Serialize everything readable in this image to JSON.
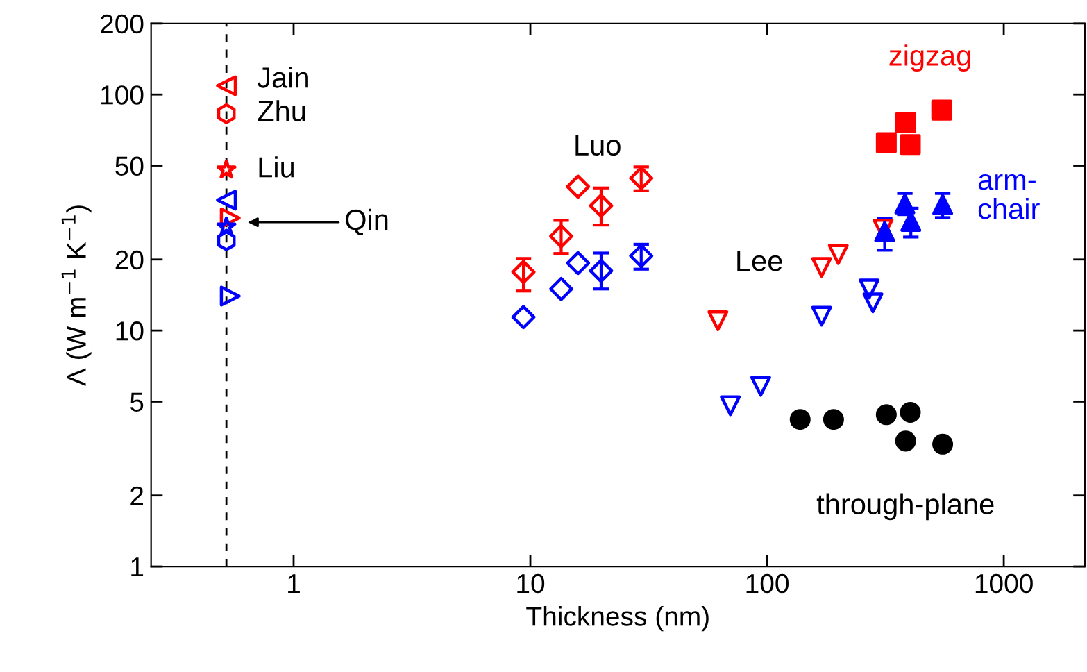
{
  "chart_data": {
    "type": "scatter",
    "xlabel": "Thickness (nm)",
    "ylabel": "Λ (W m$^{−1}$ K$^{−1}$)",
    "log": "xy",
    "xlim": [
      0.25,
      2200
    ],
    "ylim": [
      1,
      200
    ],
    "xticks": [
      1,
      10,
      100,
      1000
    ],
    "yticks": [
      1,
      2,
      5,
      10,
      20,
      50,
      100,
      200
    ],
    "grid": false,
    "legend": false,
    "ref_lines": [
      {
        "axis": "x",
        "value": 0.52,
        "label": null,
        "color": "#000000",
        "line_style": "dashed"
      }
    ],
    "annotations": [
      {
        "text": "Jain",
        "x": 0.52,
        "y": 109
      },
      {
        "text": "Zhu",
        "x": 0.52,
        "y": 83
      },
      {
        "text": "Liu",
        "x": 0.52,
        "y": 48
      },
      "Qin",
      {
        "text": "Luo",
        "x": 15.9,
        "y": 40.7
      },
      {
        "text": "Lee",
        "x": 170,
        "y": 18.5
      }
    ],
    "series": [
      {
        "color": "#ff0000",
        "marker": "triangle-left",
        "x": [
          0.52
        ],
        "values": [
          109
        ]
      },
      {
        "color": "#ff0000",
        "x": [
          0.52
        ],
        "values": [
          83
        ]
      },
      {
        "color": "#ff0000",
        "marker": "star",
        "x": [
          0.52
        ],
        "values": [
          48
        ]
      },
      {
        "color": "#0000ff",
        "marker": "triangle-left",
        "x": [
          0.52
        ],
        "values": [
          35.7
        ]
      },
      {
        "color": "#ff0000",
        "marker": "triangle-right",
        "x": [
          0.54
        ],
        "values": [
          30
        ]
      },
      {
        "color": "#0000ff",
        "marker": "star",
        "x": [
          0.52
        ],
        "values": [
          27.5
        ]
      },
      {
        "color": "#0000ff",
        "x": [
          0.52
        ],
        "values": [
          24
        ]
      },
      {
        "color": "#0000ff",
        "marker": "triangle-right",
        "x": [
          0.54
        ],
        "values": [
          14
        ]
      },
      {
        "color": "#ff0000",
        "marker": "diamond",
        "x": [
          9.35,
          13.5,
          15.9,
          19.9,
          29.4
        ],
        "values": [
          17.7,
          25.1,
          40.7,
          33.8,
          44.2
        ],
        "errors": [
          [
            14.7,
            20.2
          ],
          [
            21.2,
            29.3
          ],
          null,
          [
            28,
            40.2
          ],
          [
            39.1,
            49.4
          ]
        ]
      },
      {
        "color": "#0000ff",
        "marker": "diamond",
        "x": [
          9.35,
          13.5,
          15.9,
          19.9,
          29.4
        ],
        "values": [
          11.4,
          15,
          19.3,
          17.9,
          20.7
        ],
        "errors": [
          null,
          null,
          null,
          [
            15,
            21.3
          ],
          [
            18.2,
            23.2
          ]
        ]
      },
      {
        "color": "#ff0000",
        "marker": "triangle-down",
        "x": [
          62,
          170,
          200,
          309
        ],
        "values": [
          11,
          18.5,
          21,
          26.9
        ]
      },
      {
        "color": "#0000ff",
        "marker": "triangle-down",
        "x": [
          70,
          94,
          170,
          270,
          280
        ],
        "values": [
          4.8,
          5.8,
          11.5,
          15,
          13.1
        ]
      },
      {
        "name": "zigzag",
        "color": "#ff0000",
        "marker": "square",
        "x": [
          319,
          385,
          403,
          547
        ],
        "values": [
          62.5,
          76,
          61.4,
          85.9
        ]
      },
      {
        "name": "arm-\nchair",
        "color": "#0000ff",
        "marker": "triangle",
        "x": [
          314,
          382,
          405,
          552
        ],
        "values": [
          26.3,
          34.4,
          29,
          34.2
        ],
        "errors": [
          [
            21.9,
            29.8
          ],
          [
            31,
            38.1
          ],
          [
            24.9,
            33
          ],
          [
            30.1,
            38.1
          ]
        ]
      },
      {
        "name": "through-plane",
        "color": "#000000",
        "marker": "circle",
        "x": [
          138,
          191,
          319,
          385,
          403,
          552
        ],
        "values": [
          4.2,
          4.2,
          4.4,
          3.4,
          4.5,
          3.3
        ]
      }
    ]
  }
}
